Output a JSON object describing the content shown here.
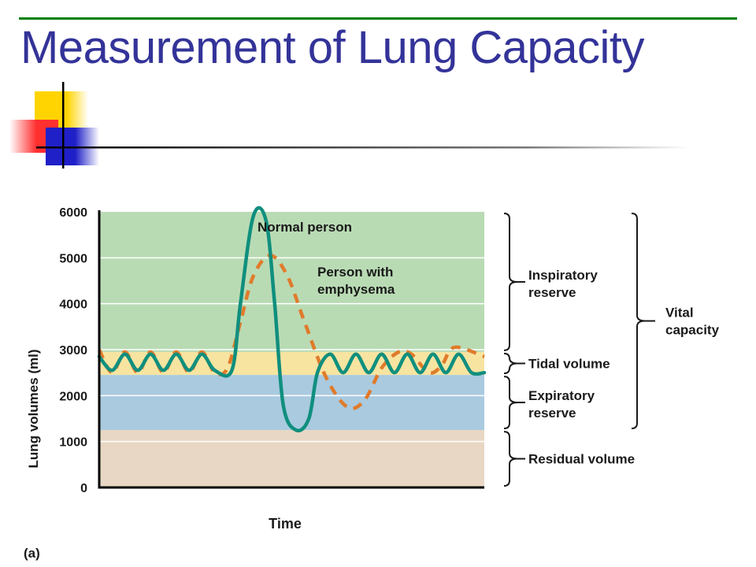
{
  "slide": {
    "title": "Measurement of Lung Capacity",
    "title_color": "#333399",
    "rule_color": "#008000"
  },
  "chart_data": {
    "type": "line",
    "xlabel": "Time",
    "ylabel": "Lung volumes (ml)",
    "ylim": [
      0,
      6000
    ],
    "yticks": [
      0,
      1000,
      2000,
      3000,
      4000,
      5000,
      6000
    ],
    "ytick_labels": [
      "0",
      "1000",
      "2000",
      "3000",
      "4000",
      "5000",
      "6000"
    ],
    "grid": true,
    "panel_label": "(a)",
    "bands": [
      {
        "label": "Residual volume",
        "from": 0,
        "to": 1250,
        "color": "#e8d7c4"
      },
      {
        "label": "Expiratory reserve",
        "from": 1250,
        "to": 2450,
        "color": "#a9cadf"
      },
      {
        "label": "Tidal volume",
        "from": 2450,
        "to": 2950,
        "color": "#f7e4a1"
      },
      {
        "label": "Inspiratory reserve",
        "from": 2950,
        "to": 6000,
        "color": "#b9dbb4"
      }
    ],
    "brackets": [
      {
        "label": "Inspiratory reserve",
        "from": 2950,
        "to": 6000
      },
      {
        "label": "Tidal volume",
        "from": 2450,
        "to": 2950
      },
      {
        "label": "Expiratory reserve",
        "from": 1250,
        "to": 2450
      },
      {
        "label": "Residual volume",
        "from": 0,
        "to": 1250
      }
    ],
    "vital_capacity": {
      "label": "Vital capacity",
      "from": 1250,
      "to": 6000
    },
    "series": [
      {
        "name": "Normal person",
        "color": "#108f7e",
        "style": "solid",
        "points": [
          [
            0,
            2850
          ],
          [
            3,
            2550
          ],
          [
            6,
            2900
          ],
          [
            9,
            2550
          ],
          [
            12,
            2900
          ],
          [
            15,
            2550
          ],
          [
            18,
            2900
          ],
          [
            21,
            2550
          ],
          [
            24,
            2900
          ],
          [
            27,
            2550
          ],
          [
            31,
            2550
          ],
          [
            33,
            4000
          ],
          [
            36,
            5900
          ],
          [
            39,
            5800
          ],
          [
            41,
            4000
          ],
          [
            43,
            1800
          ],
          [
            46,
            1250
          ],
          [
            49,
            1500
          ],
          [
            51,
            2500
          ],
          [
            54,
            2900
          ],
          [
            57,
            2500
          ],
          [
            60,
            2900
          ],
          [
            63,
            2500
          ],
          [
            66,
            2900
          ],
          [
            69,
            2500
          ],
          [
            72,
            2900
          ],
          [
            75,
            2500
          ],
          [
            78,
            2900
          ],
          [
            81,
            2500
          ],
          [
            84,
            2900
          ],
          [
            87,
            2500
          ],
          [
            90,
            2500
          ]
        ]
      },
      {
        "name": "Person with emphysema",
        "color": "#e07b2b",
        "style": "dashed",
        "points": [
          [
            0,
            3000
          ],
          [
            3,
            2500
          ],
          [
            6,
            2950
          ],
          [
            9,
            2500
          ],
          [
            12,
            2950
          ],
          [
            15,
            2500
          ],
          [
            18,
            2950
          ],
          [
            21,
            2500
          ],
          [
            24,
            2950
          ],
          [
            27,
            2500
          ],
          [
            30,
            2600
          ],
          [
            33,
            3600
          ],
          [
            36,
            4600
          ],
          [
            40,
            5050
          ],
          [
            44,
            4600
          ],
          [
            48,
            3600
          ],
          [
            53,
            2400
          ],
          [
            58,
            1750
          ],
          [
            62,
            1900
          ],
          [
            66,
            2600
          ],
          [
            70,
            2950
          ],
          [
            73,
            2900
          ],
          [
            77,
            2500
          ],
          [
            80,
            2650
          ],
          [
            83,
            3050
          ],
          [
            90,
            2850
          ]
        ]
      }
    ],
    "annotations": [
      {
        "text": "Normal person",
        "series": "Normal person"
      },
      {
        "text_lines": [
          "Person with",
          "emphysema"
        ],
        "series": "Person with emphysema"
      }
    ]
  }
}
